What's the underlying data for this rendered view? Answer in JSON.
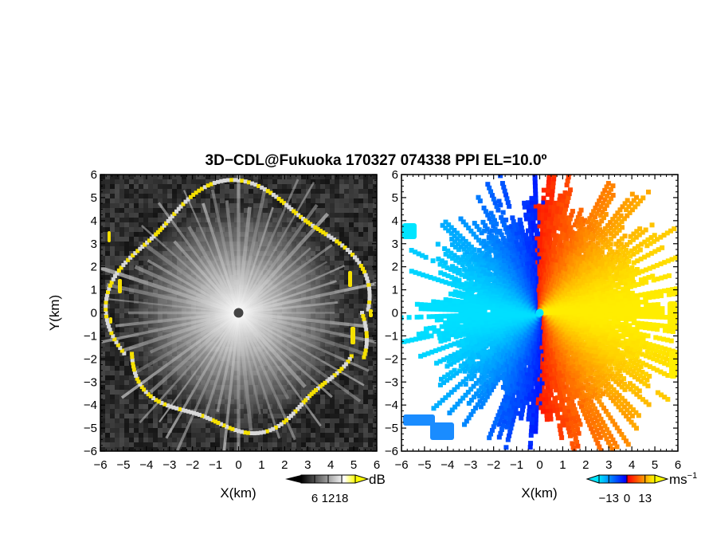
{
  "title": "3D−CDL@Fukuoka 170327 074338 PPI EL=10.0º",
  "chart_data": [
    {
      "type": "heatmap",
      "panel": "reflectivity",
      "xlabel": "X(km)",
      "ylabel": "Y(km)",
      "xlim": [
        -6,
        6
      ],
      "ylim": [
        -6,
        6
      ],
      "xticks": [
        "−6",
        "−5",
        "−4",
        "−3",
        "−2",
        "−1",
        "0",
        "1",
        "2",
        "3",
        "4",
        "5",
        "6"
      ],
      "yticks": [
        "6",
        "5",
        "4",
        "3",
        "2",
        "1",
        "0",
        "−1",
        "−2",
        "−3",
        "−4",
        "−5",
        "−6"
      ],
      "colorbar": {
        "unit": "dB",
        "ticks": [
          "6",
          "12",
          "18"
        ],
        "tick_values": [
          6,
          12,
          18
        ],
        "range": [
          0,
          24
        ],
        "colors": [
          "#000000",
          "#ffffff",
          "#ffff00"
        ]
      }
    },
    {
      "type": "heatmap",
      "panel": "doppler velocity",
      "xlabel": "X(km)",
      "xlim": [
        -6,
        6
      ],
      "ylim": [
        -6,
        6
      ],
      "xticks": [
        "−6",
        "−5",
        "−4",
        "−3",
        "−2",
        "−1",
        "0",
        "1",
        "2",
        "3",
        "4",
        "5",
        "6"
      ],
      "yticks": [
        "6",
        "5",
        "4",
        "3",
        "2",
        "1",
        "0",
        "−1",
        "−2",
        "−3",
        "−4",
        "−5",
        "−6"
      ],
      "colorbar": {
        "unit": "ms",
        "unit_exponent": "−1",
        "ticks": [
          "−13",
          "0",
          "13"
        ],
        "tick_values": [
          -13,
          0,
          13
        ],
        "range": [
          -20,
          20
        ],
        "colors": [
          "#00e5ff",
          "#0000ff",
          "#ff0000",
          "#ffff00"
        ]
      }
    }
  ]
}
